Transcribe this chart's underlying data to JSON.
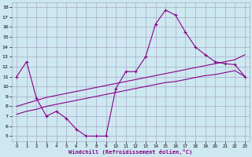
{
  "xlabel": "Windchill (Refroidissement éolien,°C)",
  "xlim": [
    -0.5,
    23.5
  ],
  "ylim": [
    4.5,
    18.5
  ],
  "yticks": [
    5,
    6,
    7,
    8,
    9,
    10,
    11,
    12,
    13,
    14,
    15,
    16,
    17,
    18
  ],
  "xticks": [
    0,
    1,
    2,
    3,
    4,
    5,
    6,
    7,
    8,
    9,
    10,
    11,
    12,
    13,
    14,
    15,
    16,
    17,
    18,
    19,
    20,
    21,
    22,
    23
  ],
  "bg_color": "#cde8f0",
  "grid_color": "#aaaacc",
  "line_color": "#880088",
  "line1_x": [
    0,
    1,
    2,
    3,
    4,
    5,
    6,
    7,
    8,
    9,
    10,
    11,
    12,
    13,
    14,
    15,
    16,
    17,
    18,
    19,
    20,
    21,
    22,
    23
  ],
  "line1_y": [
    11.0,
    12.5,
    8.8,
    7.0,
    7.5,
    6.8,
    5.7,
    5.0,
    5.0,
    5.0,
    9.8,
    11.5,
    11.5,
    13.0,
    16.3,
    17.7,
    17.2,
    15.5,
    14.0,
    13.2,
    12.5,
    12.3,
    12.2,
    11.0
  ],
  "line2_x": [
    0,
    23
  ],
  "line2_y": [
    8.0,
    13.2
  ],
  "line3_x": [
    0,
    23
  ],
  "line3_y": [
    7.2,
    11.0
  ],
  "line2_full_x": [
    0,
    1,
    2,
    3,
    4,
    5,
    6,
    7,
    8,
    9,
    10,
    11,
    12,
    13,
    14,
    15,
    16,
    17,
    18,
    19,
    20,
    21,
    22,
    23
  ],
  "line2_full_y": [
    8.0,
    8.3,
    8.6,
    8.9,
    9.1,
    9.3,
    9.5,
    9.7,
    9.9,
    10.1,
    10.3,
    10.5,
    10.7,
    10.9,
    11.1,
    11.3,
    11.5,
    11.7,
    11.9,
    12.1,
    12.3,
    12.5,
    12.7,
    13.2
  ],
  "line3_full_x": [
    0,
    1,
    2,
    3,
    4,
    5,
    6,
    7,
    8,
    9,
    10,
    11,
    12,
    13,
    14,
    15,
    16,
    17,
    18,
    19,
    20,
    21,
    22,
    23
  ],
  "line3_full_y": [
    7.2,
    7.5,
    7.7,
    8.0,
    8.2,
    8.4,
    8.6,
    8.8,
    9.0,
    9.2,
    9.4,
    9.6,
    9.8,
    10.0,
    10.2,
    10.4,
    10.5,
    10.7,
    10.9,
    11.1,
    11.2,
    11.4,
    11.6,
    11.0
  ]
}
